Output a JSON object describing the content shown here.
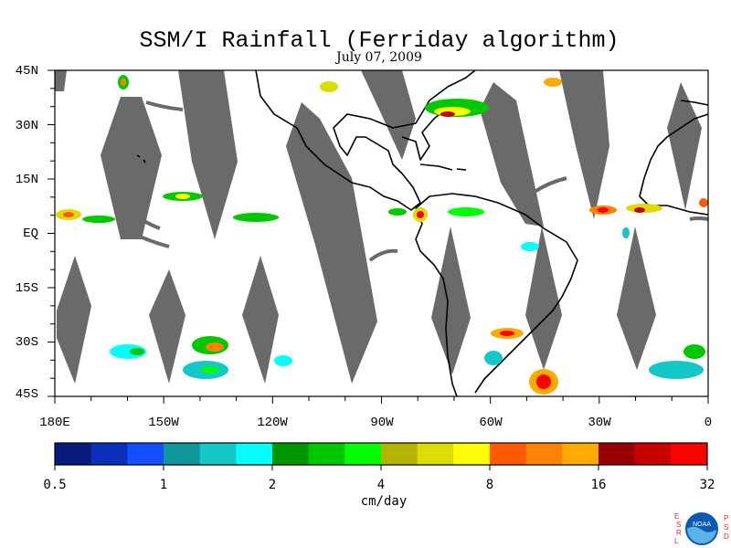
{
  "title": "SSM/I Rainfall (Ferriday algorithm)",
  "date": "July 07, 2009",
  "lat_labels": [
    "45N",
    "30N",
    "15N",
    "EQ",
    "15S",
    "30S",
    "45S"
  ],
  "lon_labels": [
    "180E",
    "150W",
    "120W",
    "90W",
    "60W",
    "30W",
    "0"
  ],
  "colorbar": {
    "colors": [
      "#0a1a7a",
      "#0a2fb8",
      "#1450ff",
      "#11979b",
      "#14c8c8",
      "#00ffff",
      "#009600",
      "#00c800",
      "#00ff00",
      "#b4b400",
      "#dcdc00",
      "#ffff00",
      "#ff5a00",
      "#ff8200",
      "#ffaa00",
      "#960000",
      "#c80000",
      "#ff0000"
    ],
    "tick_labels": [
      "0.5",
      "1",
      "2",
      "4",
      "8",
      "16",
      "32"
    ],
    "units": "cm/day"
  },
  "logo": {
    "left_letters": [
      "E",
      "S",
      "R",
      "L"
    ],
    "right_letters": [
      "P",
      "S",
      "D"
    ],
    "emblem_text": "NOAA",
    "colors": {
      "letters": "#e03030",
      "emblem_blue": "#0a5ab4",
      "emblem_light": "#5ab4e6"
    }
  },
  "colors": {
    "swath_gap": "#6a6a6a",
    "coastline": "#000000"
  }
}
